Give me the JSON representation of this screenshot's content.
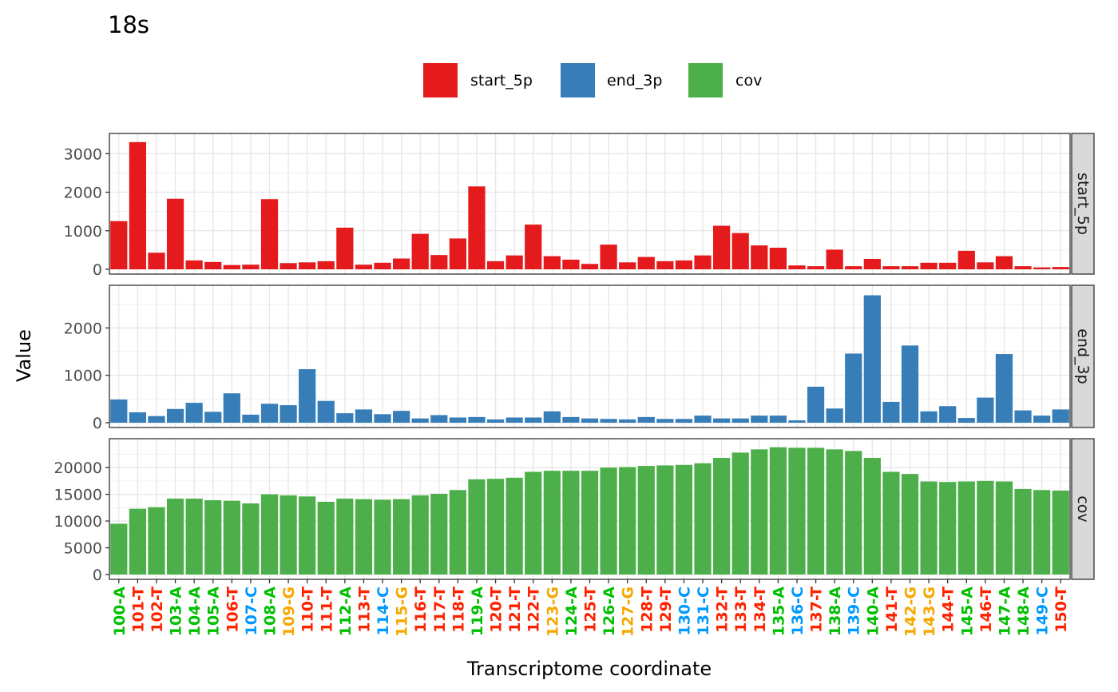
{
  "chart_data": {
    "type": "bar",
    "title": "18s",
    "xlabel": "Transcriptome coordinate",
    "ylabel": "Value",
    "legend_position": "top",
    "legend": [
      {
        "name": "start_5p",
        "color": "#E41A1C"
      },
      {
        "name": "end_3p",
        "color": "#377EB8"
      },
      {
        "name": "cov",
        "color": "#4DAF4A"
      }
    ],
    "nucleotide_colors": {
      "A": "#00C000",
      "T": "#FF2200",
      "C": "#0099FF",
      "G": "#F5A800"
    },
    "categories": [
      "100-A",
      "101-T",
      "102-T",
      "103-A",
      "104-A",
      "105-A",
      "106-T",
      "107-C",
      "108-A",
      "109-G",
      "110-T",
      "111-T",
      "112-A",
      "113-T",
      "114-C",
      "115-G",
      "116-T",
      "117-T",
      "118-T",
      "119-A",
      "120-T",
      "121-T",
      "122-T",
      "123-G",
      "124-A",
      "125-T",
      "126-A",
      "127-G",
      "128-T",
      "129-T",
      "130-C",
      "131-C",
      "132-T",
      "133-T",
      "134-T",
      "135-A",
      "136-C",
      "137-T",
      "138-A",
      "139-C",
      "140-A",
      "141-T",
      "142-G",
      "143-G",
      "144-T",
      "145-A",
      "146-T",
      "147-A",
      "148-A",
      "149-C",
      "150-T"
    ],
    "series": [
      {
        "name": "start_5p",
        "color": "#E41A1C",
        "ylim": [
          0,
          3400
        ],
        "yticks": [
          0,
          1000,
          2000,
          3000
        ],
        "values": [
          1250,
          3300,
          430,
          1830,
          230,
          190,
          110,
          120,
          1820,
          160,
          180,
          210,
          1080,
          120,
          170,
          280,
          920,
          370,
          800,
          2150,
          210,
          360,
          1160,
          340,
          250,
          140,
          640,
          180,
          320,
          210,
          230,
          360,
          1130,
          940,
          620,
          560,
          100,
          80,
          510,
          80,
          270,
          80,
          80,
          170,
          170,
          480,
          180,
          340,
          80,
          50,
          60
        ]
      },
      {
        "name": "end_3p",
        "color": "#377EB8",
        "ylim": [
          0,
          2800
        ],
        "yticks": [
          0,
          1000,
          2000
        ],
        "values": [
          490,
          220,
          140,
          290,
          420,
          230,
          620,
          170,
          400,
          370,
          1130,
          460,
          200,
          280,
          180,
          250,
          90,
          160,
          110,
          120,
          70,
          110,
          110,
          240,
          120,
          90,
          80,
          70,
          120,
          80,
          80,
          150,
          90,
          90,
          150,
          150,
          50,
          760,
          300,
          1460,
          2690,
          440,
          1630,
          240,
          350,
          100,
          530,
          1450,
          260,
          150,
          280
        ]
      },
      {
        "name": "cov",
        "color": "#4DAF4A",
        "ylim": [
          0,
          24500
        ],
        "yticks": [
          0,
          5000,
          10000,
          15000,
          20000
        ],
        "values": [
          9500,
          12300,
          12600,
          14200,
          14200,
          13900,
          13800,
          13300,
          15000,
          14800,
          14600,
          13600,
          14200,
          14100,
          14000,
          14100,
          14800,
          15100,
          15800,
          17800,
          17900,
          18100,
          19200,
          19400,
          19400,
          19400,
          20000,
          20100,
          20300,
          20400,
          20500,
          20800,
          21800,
          22800,
          23400,
          23800,
          23700,
          23700,
          23400,
          23100,
          21800,
          19200,
          18800,
          17400,
          17300,
          17400,
          17500,
          17400,
          16000,
          15800,
          15700
        ]
      }
    ]
  }
}
